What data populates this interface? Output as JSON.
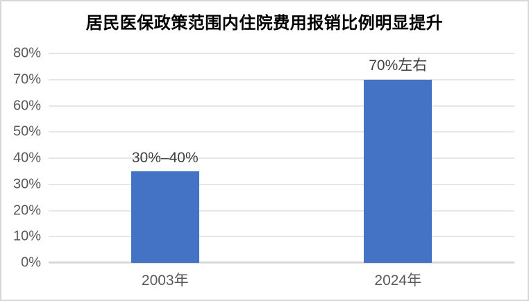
{
  "page": {
    "background_color": "#ffffff",
    "border_color": "#d7d7d7"
  },
  "chart_data": {
    "type": "bar",
    "title": "居民医保政策范围内住院费用报销比例明显提升",
    "categories": [
      "2003年",
      "2024年"
    ],
    "values": [
      35,
      70
    ],
    "bar_labels": [
      "30%–40%",
      "70%左右"
    ],
    "ylim": [
      0,
      80
    ],
    "ytick_step": 10,
    "ytick_labels": [
      "0%",
      "10%",
      "20%",
      "30%",
      "40%",
      "50%",
      "60%",
      "70%",
      "80%"
    ],
    "xlabel": "",
    "ylabel": "",
    "grid": true,
    "legend": false,
    "bar_color": "#4472c4",
    "gridline_color": "#e6e6e6",
    "axis_line_color": "#d9d9d9",
    "tick_label_color": "#595959",
    "data_label_color": "#404040",
    "title_color": "#000000"
  }
}
